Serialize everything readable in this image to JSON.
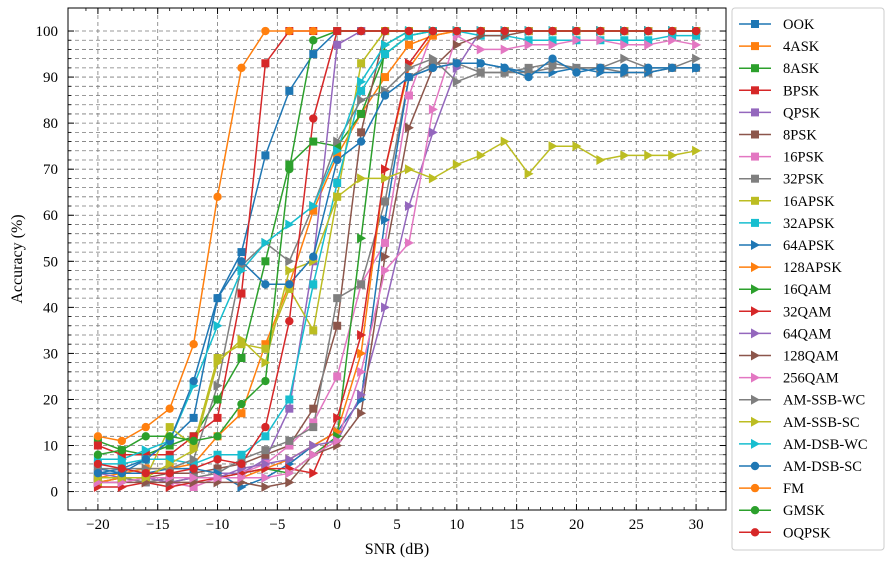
{
  "chart_data": {
    "type": "line",
    "xlabel": "SNR (dB)",
    "ylabel": "Accuracy (%)",
    "xlim": [
      -22.5,
      32.5
    ],
    "ylim": [
      -4,
      105
    ],
    "xticks": [
      -20,
      -15,
      -10,
      -5,
      0,
      5,
      10,
      15,
      20,
      25,
      30
    ],
    "yticks": [
      0,
      10,
      20,
      30,
      40,
      50,
      60,
      70,
      80,
      90,
      100
    ],
    "xtick_labels": [
      "−20",
      "−15",
      "−10",
      "−5",
      "0",
      "5",
      "10",
      "15",
      "20",
      "25",
      "30"
    ],
    "ytick_labels": [
      "0",
      "10",
      "20",
      "30",
      "40",
      "50",
      "60",
      "70",
      "80",
      "90",
      "100"
    ],
    "grid": true,
    "legend_position": "outside-right",
    "x": [
      -20,
      -18,
      -16,
      -14,
      -12,
      -10,
      -8,
      -6,
      -4,
      -2,
      0,
      2,
      4,
      6,
      8,
      10,
      12,
      14,
      16,
      18,
      20,
      22,
      24,
      26,
      28,
      30
    ],
    "series": [
      {
        "name": "OOK",
        "color": "#1f77b4",
        "marker": "square",
        "values": [
          4,
          5,
          7,
          11,
          16,
          42,
          52,
          73,
          87,
          95,
          100,
          100,
          100,
          100,
          100,
          100,
          100,
          100,
          100,
          100,
          100,
          100,
          100,
          100,
          100,
          100
        ]
      },
      {
        "name": "4ASK",
        "color": "#ff7f0e",
        "marker": "square",
        "values": [
          3,
          4,
          5,
          5,
          6,
          12,
          17,
          32,
          45,
          61,
          73,
          82,
          90,
          97,
          99,
          100,
          100,
          100,
          100,
          100,
          100,
          100,
          100,
          100,
          100,
          100
        ]
      },
      {
        "name": "8ASK",
        "color": "#2ca02c",
        "marker": "square",
        "values": [
          11,
          9,
          8,
          10,
          12,
          20,
          29,
          50,
          71,
          76,
          75,
          82,
          95,
          99,
          100,
          100,
          100,
          100,
          100,
          100,
          100,
          100,
          100,
          100,
          100,
          100
        ]
      },
      {
        "name": "BPSK",
        "color": "#d62728",
        "marker": "square",
        "values": [
          10,
          8,
          8,
          8,
          12,
          16,
          43,
          93,
          100,
          100,
          100,
          100,
          100,
          100,
          100,
          100,
          100,
          100,
          100,
          100,
          100,
          100,
          100,
          100,
          100,
          100
        ]
      },
      {
        "name": "QPSK",
        "color": "#9467bd",
        "marker": "square",
        "values": [
          4,
          3,
          2,
          3,
          3,
          4,
          4,
          7,
          18,
          50,
          97,
          100,
          100,
          100,
          100,
          100,
          100,
          100,
          100,
          100,
          100,
          100,
          100,
          100,
          100,
          100
        ]
      },
      {
        "name": "8PSK",
        "color": "#8c564b",
        "marker": "square",
        "values": [
          2,
          3,
          3,
          4,
          4,
          5,
          6,
          8,
          10,
          18,
          36,
          78,
          100,
          100,
          100,
          100,
          100,
          100,
          100,
          100,
          100,
          100,
          100,
          100,
          100,
          100
        ]
      },
      {
        "name": "16PSK",
        "color": "#e377c2",
        "marker": "square",
        "values": [
          3,
          3,
          3,
          2,
          1,
          3,
          4,
          6,
          10,
          15,
          25,
          45,
          54,
          86,
          100,
          100,
          100,
          100,
          100,
          100,
          100,
          100,
          100,
          100,
          100,
          100
        ]
      },
      {
        "name": "32PSK",
        "color": "#7f7f7f",
        "marker": "square",
        "values": [
          3,
          3,
          2,
          3,
          3,
          4,
          7,
          9,
          11,
          14,
          42,
          45,
          63,
          90,
          93,
          93,
          91,
          91,
          92,
          93,
          92,
          92,
          91,
          91,
          92,
          92
        ]
      },
      {
        "name": "16APSK",
        "color": "#bcbd22",
        "marker": "square",
        "values": [
          2,
          3,
          3,
          14,
          10,
          29,
          32,
          31,
          44,
          35,
          64,
          93,
          100,
          100,
          100,
          100,
          100,
          100,
          100,
          100,
          100,
          100,
          100,
          100,
          100,
          100
        ]
      },
      {
        "name": "32APSK",
        "color": "#17becf",
        "marker": "square",
        "values": [
          6,
          6,
          7,
          7,
          6,
          8,
          8,
          12,
          20,
          45,
          67,
          87,
          95,
          99,
          100,
          100,
          99,
          99,
          98,
          98,
          98,
          98,
          98,
          98,
          99,
          99
        ]
      },
      {
        "name": "64APSK",
        "color": "#1f77b4",
        "marker": "tri-right",
        "values": [
          5,
          4,
          4,
          5,
          5,
          4,
          1,
          3,
          6,
          10,
          13,
          20,
          59,
          90,
          92,
          93,
          93,
          92,
          91,
          91,
          92,
          91,
          91,
          91,
          92,
          92
        ]
      },
      {
        "name": "128APSK",
        "color": "#ff7f0e",
        "marker": "tri-right",
        "values": [
          2,
          3,
          3,
          3,
          3,
          3,
          3,
          5,
          7,
          10,
          13,
          30,
          70,
          92,
          99,
          100,
          100,
          100,
          100,
          100,
          100,
          100,
          100,
          100,
          100,
          100
        ]
      },
      {
        "name": "16QAM",
        "color": "#2ca02c",
        "marker": "tri-right",
        "values": [
          3,
          3,
          3,
          2,
          3,
          3,
          4,
          5,
          4,
          8,
          12,
          55,
          97,
          100,
          100,
          100,
          100,
          100,
          100,
          100,
          100,
          100,
          100,
          100,
          100,
          100
        ]
      },
      {
        "name": "32QAM",
        "color": "#d62728",
        "marker": "tri-right",
        "values": [
          1,
          1,
          2,
          1,
          2,
          3,
          4,
          5,
          5,
          4,
          16,
          34,
          70,
          93,
          100,
          100,
          100,
          100,
          100,
          100,
          100,
          100,
          100,
          100,
          100,
          100
        ]
      },
      {
        "name": "64QAM",
        "color": "#9467bd",
        "marker": "tri-right",
        "values": [
          2,
          2,
          3,
          2,
          3,
          3,
          5,
          6,
          7,
          10,
          11,
          21,
          40,
          62,
          78,
          92,
          100,
          100,
          100,
          100,
          100,
          100,
          100,
          100,
          100,
          100
        ]
      },
      {
        "name": "128QAM",
        "color": "#8c564b",
        "marker": "tri-right",
        "values": [
          2,
          2,
          2,
          2,
          2,
          2,
          2,
          1,
          2,
          8,
          10,
          17,
          51,
          79,
          92,
          97,
          99,
          99,
          100,
          100,
          100,
          100,
          100,
          100,
          100,
          100
        ]
      },
      {
        "name": "256QAM",
        "color": "#e377c2",
        "marker": "tri-right",
        "values": [
          2,
          2,
          3,
          3,
          3,
          3,
          3,
          3,
          4,
          8,
          11,
          26,
          48,
          54,
          83,
          99,
          96,
          96,
          97,
          97,
          98,
          98,
          97,
          97,
          98,
          97
        ]
      },
      {
        "name": "AM-SSB-WC",
        "color": "#7f7f7f",
        "marker": "tri-right",
        "values": [
          5,
          5,
          5,
          5,
          7,
          23,
          49,
          54,
          50,
          62,
          76,
          85,
          87,
          92,
          94,
          89,
          91,
          91,
          91,
          92,
          92,
          92,
          94,
          92,
          92,
          94
        ]
      },
      {
        "name": "AM-SSB-SC",
        "color": "#bcbd22",
        "marker": "tri-right",
        "values": [
          3,
          3,
          3,
          6,
          9,
          28,
          33,
          28,
          48,
          50,
          64,
          68,
          68,
          70,
          68,
          71,
          73,
          76,
          69,
          75,
          75,
          72,
          73,
          73,
          73,
          74
        ]
      },
      {
        "name": "AM-DSB-WC",
        "color": "#17becf",
        "marker": "tri-right",
        "values": [
          7,
          7,
          9,
          11,
          23,
          36,
          48,
          54,
          58,
          62,
          74,
          89,
          97,
          100,
          100,
          100,
          100,
          100,
          100,
          100,
          100,
          100,
          100,
          100,
          100,
          100
        ]
      },
      {
        "name": "AM-DSB-SC",
        "color": "#1f77b4",
        "marker": "circle",
        "values": [
          4,
          4,
          7,
          11,
          24,
          42,
          50,
          45,
          45,
          51,
          72,
          76,
          86,
          90,
          92,
          93,
          93,
          92,
          90,
          94,
          91,
          92,
          92,
          92,
          92,
          92
        ]
      },
      {
        "name": "FM",
        "color": "#ff7f0e",
        "marker": "circle",
        "values": [
          12,
          11,
          14,
          18,
          32,
          64,
          92,
          100,
          100,
          100,
          100,
          100,
          100,
          100,
          100,
          100,
          100,
          100,
          100,
          100,
          100,
          100,
          100,
          100,
          100,
          100
        ]
      },
      {
        "name": "GMSK",
        "color": "#2ca02c",
        "marker": "circle",
        "values": [
          8,
          9,
          12,
          12,
          11,
          12,
          19,
          24,
          70,
          98,
          100,
          100,
          100,
          100,
          100,
          100,
          100,
          100,
          100,
          100,
          100,
          100,
          100,
          100,
          100,
          100
        ]
      },
      {
        "name": "OQPSK",
        "color": "#d62728",
        "marker": "circle",
        "values": [
          6,
          5,
          4,
          4,
          5,
          7,
          6,
          14,
          37,
          81,
          100,
          100,
          100,
          100,
          100,
          100,
          100,
          100,
          100,
          100,
          100,
          100,
          100,
          100,
          100,
          100
        ]
      }
    ]
  }
}
